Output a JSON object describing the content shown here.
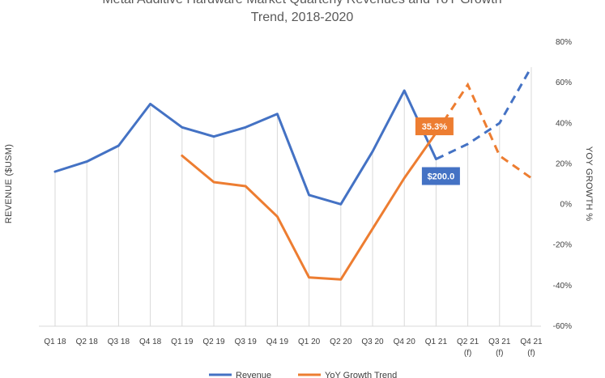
{
  "chart_data": {
    "type": "line",
    "title_lines": [
      "Metal Additive Hardware Market Quarterly Revenues and YoY Growth",
      "Trend, 2018-2020"
    ],
    "ylabel": "REVENUE ($USM)",
    "y2label": "YOY GROWTH %",
    "categories": [
      [
        "Q1 18"
      ],
      [
        "Q2 18"
      ],
      [
        "Q3 18"
      ],
      [
        "Q4 18"
      ],
      [
        "Q1 19"
      ],
      [
        "Q2 19"
      ],
      [
        "Q3 19"
      ],
      [
        "Q4 19"
      ],
      [
        "Q1 20"
      ],
      [
        "Q2 20"
      ],
      [
        "Q3 20"
      ],
      [
        "Q4 20"
      ],
      [
        "Q1 21"
      ],
      [
        "Q2 21",
        "(f)"
      ],
      [
        "Q3 21",
        "(f)"
      ],
      [
        "Q4 21",
        "(f)"
      ]
    ],
    "y2_ticks": [
      "80%",
      "60%",
      "40%",
      "20%",
      "0%",
      "-20%",
      "-40%",
      "-60%"
    ],
    "y2lim": [
      -60,
      80
    ],
    "ylim": [
      0,
      340
    ],
    "series": [
      {
        "name": "Revenue",
        "color": "#4472C4",
        "axis": "left",
        "values": [
          185,
          197,
          216,
          266,
          238,
          227,
          238,
          254,
          157,
          146,
          209,
          282,
          200,
          218,
          243,
          310
        ],
        "forecast_from_index": 12
      },
      {
        "name": "YoY Growth Trend",
        "color": "#ED7D31",
        "axis": "right",
        "values": [
          null,
          null,
          null,
          null,
          24,
          11,
          9,
          -6,
          -36,
          -37,
          -12,
          13,
          35.3,
          59,
          24,
          13
        ],
        "forecast_from_index": 12
      }
    ],
    "callouts": [
      {
        "series": 1,
        "index": 12,
        "text": "35.3%",
        "color": "#ED7D31"
      },
      {
        "series": 0,
        "index": 12,
        "text": "$200.0",
        "color": "#4472C4"
      }
    ],
    "legend": {
      "placement": "bottom",
      "items": [
        {
          "label": "Revenue",
          "color": "#4472C4"
        },
        {
          "label": "YoY Growth Trend",
          "color": "#ED7D31"
        }
      ]
    },
    "grid": {
      "vertical_drop_lines": true,
      "color": "#D9D9D9"
    }
  }
}
